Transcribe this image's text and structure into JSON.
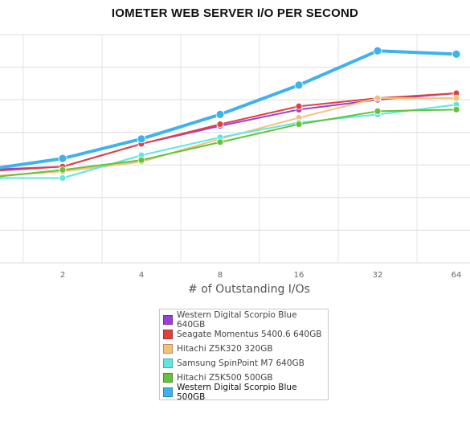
{
  "chart_data": {
    "type": "line",
    "title": "IOMETER WEB SERVER I/O PER SECOND",
    "xlabel": "# of Outstanding I/Os",
    "ylabel": "",
    "x": [
      1,
      2,
      4,
      8,
      16,
      32,
      64
    ],
    "x_tick_labels": [
      "2",
      "4",
      "8",
      "16",
      "32",
      "64"
    ],
    "ylim": [
      0,
      7
    ],
    "grid": true,
    "legend_position": "bottom",
    "series": [
      {
        "name": "Western Digital Scorpio Blue 640GB",
        "color": "#9b3fd9",
        "values": [
          2.85,
          2.95,
          3.65,
          4.2,
          4.7,
          5.0,
          5.2
        ]
      },
      {
        "name": "Seagate Momentus 5400.6 640GB",
        "color": "#e04040",
        "values": [
          2.8,
          2.95,
          3.65,
          4.25,
          4.8,
          5.05,
          5.2
        ]
      },
      {
        "name": "Hitachi Z5K320 320GB",
        "color": "#f3c27a",
        "values": [
          2.65,
          2.8,
          3.1,
          3.8,
          4.45,
          5.05,
          5.05
        ]
      },
      {
        "name": "Samsung SpinPoint M7 640GB",
        "color": "#5ee8e0",
        "values": [
          2.6,
          2.6,
          3.3,
          3.85,
          4.3,
          4.55,
          4.85
        ]
      },
      {
        "name": "Hitachi Z5K500 500GB",
        "color": "#66c23a",
        "values": [
          2.6,
          2.85,
          3.15,
          3.7,
          4.25,
          4.65,
          4.7
        ]
      },
      {
        "name": "Western Digital Scorpio Blue 500GB",
        "color": "#3fb2ee",
        "values": [
          2.85,
          3.2,
          3.8,
          4.55,
          5.45,
          6.5,
          6.4
        ]
      }
    ]
  }
}
